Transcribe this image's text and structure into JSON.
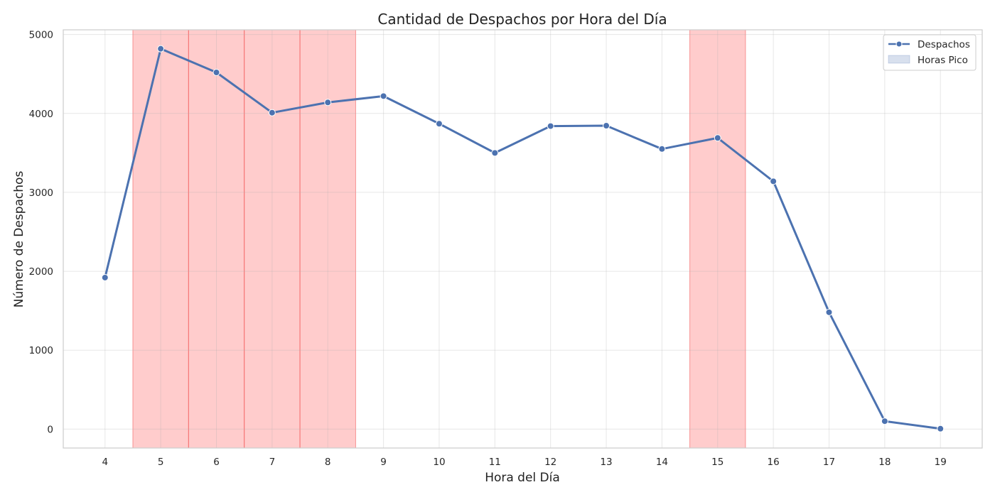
{
  "chart_data": {
    "type": "line",
    "title": "Cantidad de Despachos por Hora del Día",
    "xlabel": "Hora del Día",
    "ylabel": "Número de Despachos",
    "x": [
      4,
      5,
      6,
      7,
      8,
      9,
      10,
      11,
      12,
      13,
      14,
      15,
      16,
      17,
      18,
      19
    ],
    "xlim": [
      3.25,
      19.75
    ],
    "ylim": [
      -240,
      5060
    ],
    "yticks": [
      0,
      1000,
      2000,
      3000,
      4000,
      5000
    ],
    "grid": true,
    "legend_position": "top-right",
    "series": [
      {
        "name": "Despachos",
        "color": "#4c72b0",
        "values": [
          1920,
          4820,
          4520,
          4010,
          4140,
          4220,
          3870,
          3500,
          3840,
          3845,
          3550,
          3690,
          3140,
          1480,
          100,
          5
        ]
      }
    ],
    "highlight": {
      "name": "Horas Pico",
      "color": "#ff7f7f",
      "hours": [
        5,
        6,
        7,
        8,
        15
      ]
    }
  }
}
